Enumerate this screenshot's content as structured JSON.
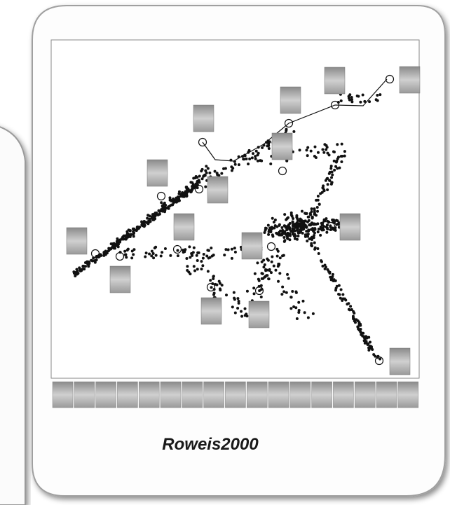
{
  "caption": "Roweis2000"
}
